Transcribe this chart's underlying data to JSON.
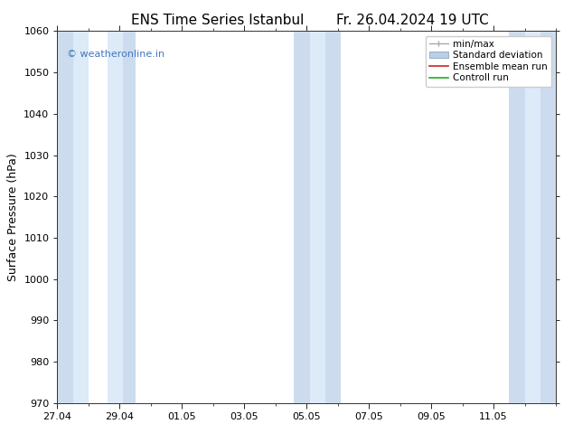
{
  "title_left": "ENS Time Series Istanbul",
  "title_right": "Fr. 26.04.2024 19 UTC",
  "ylabel": "Surface Pressure (hPa)",
  "ylim": [
    970,
    1060
  ],
  "yticks": [
    970,
    980,
    990,
    1000,
    1010,
    1020,
    1030,
    1040,
    1050,
    1060
  ],
  "xlim_start": 0.0,
  "xlim_end": 16.0,
  "xtick_labels": [
    "27.04",
    "29.04",
    "01.05",
    "03.05",
    "05.05",
    "07.05",
    "09.05",
    "11.05"
  ],
  "xtick_positions": [
    0,
    2,
    4,
    6,
    8,
    10,
    12,
    14
  ],
  "bg_color": "#ffffff",
  "shaded_bands": [
    {
      "xmin": 0.0,
      "xmax": 0.5,
      "color": "#ccdcee"
    },
    {
      "xmin": 0.5,
      "xmax": 1.0,
      "color": "#ddeaf7"
    },
    {
      "xmin": 1.6,
      "xmax": 2.1,
      "color": "#ddeaf7"
    },
    {
      "xmin": 2.1,
      "xmax": 2.5,
      "color": "#ccdcee"
    },
    {
      "xmin": 7.6,
      "xmax": 8.1,
      "color": "#ccdcee"
    },
    {
      "xmin": 8.1,
      "xmax": 8.6,
      "color": "#ddeaf7"
    },
    {
      "xmin": 8.6,
      "xmax": 9.1,
      "color": "#ccdcee"
    },
    {
      "xmin": 14.5,
      "xmax": 15.0,
      "color": "#ccdcee"
    },
    {
      "xmin": 15.0,
      "xmax": 15.5,
      "color": "#ddeaf7"
    },
    {
      "xmin": 15.5,
      "xmax": 16.0,
      "color": "#ccdcee"
    }
  ],
  "watermark_text": "© weatheronline.in",
  "watermark_color": "#4477bb",
  "watermark_fontsize": 8,
  "legend_labels": [
    "min/max",
    "Standard deviation",
    "Ensemble mean run",
    "Controll run"
  ],
  "legend_colors": [
    "#aaaaaa",
    "#b8d0e8",
    "#cc2222",
    "#22aa22"
  ],
  "legend_lw": [
    1.0,
    6.0,
    1.2,
    1.2
  ],
  "title_fontsize": 11,
  "tick_fontsize": 8,
  "ylabel_fontsize": 9
}
